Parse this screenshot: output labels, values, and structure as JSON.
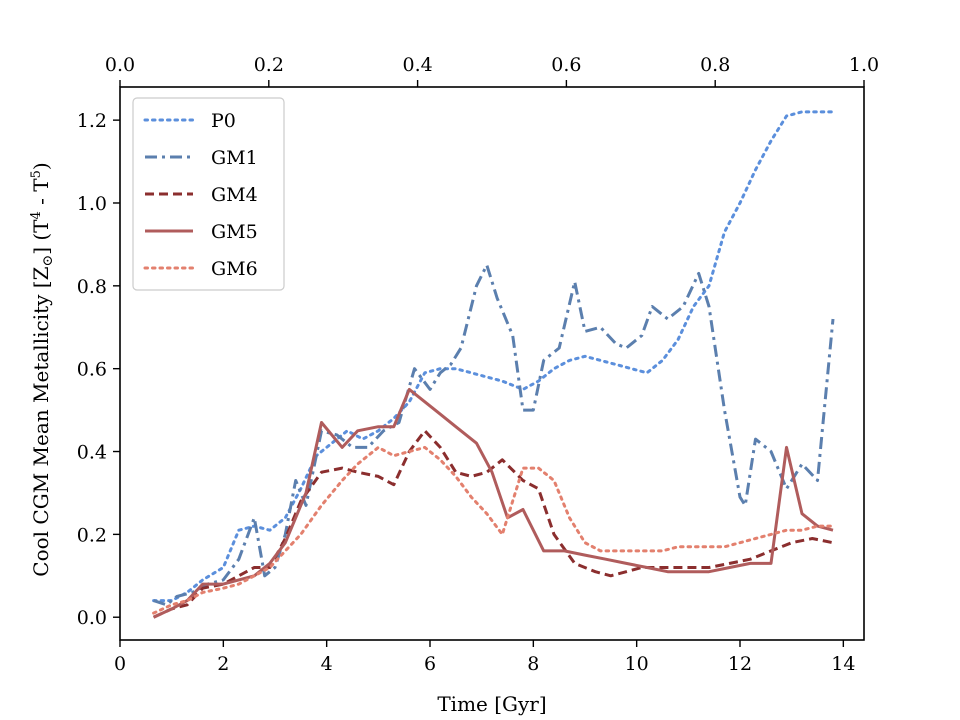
{
  "chart_data": {
    "type": "line",
    "xlabel": "Time [Gyr]",
    "ylabel": {
      "base": "Cool CGM Mean Metallicity [Z",
      "sun": "⊙",
      "mid": "] (T",
      "sup1": "4",
      "dash": " - T",
      "sup2": "5",
      "end": ")"
    },
    "xlim": [
      0,
      14.4
    ],
    "ylim": [
      -0.055,
      1.28
    ],
    "x_ticks": [
      0,
      2,
      4,
      6,
      8,
      10,
      12,
      14
    ],
    "x_tick_labels": [
      "0",
      "2",
      "4",
      "6",
      "8",
      "10",
      "12",
      "14"
    ],
    "y_ticks": [
      0.0,
      0.2,
      0.4,
      0.6,
      0.8,
      1.0,
      1.2
    ],
    "y_tick_labels": [
      "0.0",
      "0.2",
      "0.4",
      "0.6",
      "0.8",
      "1.0",
      "1.2"
    ],
    "top_ticks": [
      0.0,
      0.2,
      0.4,
      0.6,
      0.8,
      1.0
    ],
    "top_tick_labels": [
      "0.0",
      "0.2",
      "0.4",
      "0.6",
      "0.8",
      "1.0"
    ],
    "legend_position": "upper-left",
    "series": [
      {
        "name": "P0",
        "color": "#5b8fdc",
        "style": "dotted",
        "x": [
          0.65,
          1.0,
          1.3,
          1.6,
          2.0,
          2.3,
          2.6,
          2.9,
          3.2,
          3.5,
          3.8,
          4.1,
          4.4,
          4.7,
          5.0,
          5.3,
          5.6,
          5.9,
          6.2,
          6.5,
          6.8,
          7.1,
          7.4,
          7.8,
          8.1,
          8.4,
          8.7,
          9.0,
          9.3,
          9.6,
          9.9,
          10.2,
          10.5,
          10.8,
          11.1,
          11.4,
          11.7,
          12.0,
          12.3,
          12.6,
          12.9,
          13.2,
          13.5,
          13.8
        ],
        "y": [
          0.04,
          0.04,
          0.06,
          0.09,
          0.12,
          0.21,
          0.22,
          0.21,
          0.24,
          0.31,
          0.39,
          0.42,
          0.45,
          0.43,
          0.45,
          0.48,
          0.52,
          0.59,
          0.6,
          0.6,
          0.59,
          0.58,
          0.57,
          0.55,
          0.57,
          0.6,
          0.62,
          0.63,
          0.62,
          0.61,
          0.6,
          0.59,
          0.62,
          0.67,
          0.75,
          0.8,
          0.93,
          1.0,
          1.08,
          1.15,
          1.21,
          1.22,
          1.22,
          1.22
        ]
      },
      {
        "name": "GM1",
        "color": "#5b7fae",
        "style": "dashdot",
        "x": [
          0.65,
          0.9,
          1.1,
          1.4,
          1.7,
          2.0,
          2.3,
          2.6,
          2.8,
          3.0,
          3.2,
          3.4,
          3.6,
          3.9,
          4.2,
          4.5,
          4.8,
          5.1,
          5.4,
          5.7,
          6.0,
          6.2,
          6.4,
          6.6,
          6.9,
          7.1,
          7.3,
          7.6,
          7.8,
          8.0,
          8.2,
          8.5,
          8.8,
          9.0,
          9.3,
          9.6,
          9.8,
          10.1,
          10.3,
          10.6,
          10.9,
          11.2,
          11.4,
          11.7,
          12.0,
          12.1,
          12.3,
          12.6,
          12.9,
          13.2,
          13.5,
          13.8
        ],
        "y": [
          0.04,
          0.03,
          0.05,
          0.06,
          0.08,
          0.09,
          0.14,
          0.24,
          0.1,
          0.12,
          0.2,
          0.33,
          0.27,
          0.45,
          0.44,
          0.41,
          0.41,
          0.45,
          0.47,
          0.6,
          0.55,
          0.59,
          0.61,
          0.65,
          0.8,
          0.85,
          0.77,
          0.68,
          0.5,
          0.5,
          0.62,
          0.65,
          0.81,
          0.69,
          0.7,
          0.66,
          0.65,
          0.68,
          0.75,
          0.72,
          0.75,
          0.83,
          0.75,
          0.5,
          0.29,
          0.27,
          0.43,
          0.4,
          0.31,
          0.37,
          0.33,
          0.72
        ]
      },
      {
        "name": "GM4",
        "color": "#8b2e2e",
        "style": "dashed",
        "x": [
          0.65,
          1.0,
          1.3,
          1.6,
          2.0,
          2.3,
          2.6,
          2.9,
          3.2,
          3.5,
          3.9,
          4.3,
          4.6,
          5.0,
          5.3,
          5.6,
          5.9,
          6.2,
          6.5,
          6.8,
          7.1,
          7.4,
          7.8,
          8.1,
          8.4,
          8.8,
          9.2,
          9.5,
          9.8,
          10.1,
          10.4,
          10.7,
          11.0,
          11.4,
          11.8,
          12.2,
          12.6,
          13.0,
          13.4,
          13.8
        ],
        "y": [
          0.0,
          0.02,
          0.03,
          0.07,
          0.08,
          0.1,
          0.12,
          0.12,
          0.19,
          0.28,
          0.35,
          0.36,
          0.35,
          0.34,
          0.32,
          0.4,
          0.45,
          0.41,
          0.35,
          0.34,
          0.35,
          0.38,
          0.33,
          0.31,
          0.2,
          0.13,
          0.11,
          0.1,
          0.11,
          0.12,
          0.12,
          0.12,
          0.12,
          0.12,
          0.13,
          0.14,
          0.16,
          0.18,
          0.19,
          0.18
        ]
      },
      {
        "name": "GM5",
        "color": "#b05c5c",
        "style": "solid",
        "x": [
          0.65,
          1.0,
          1.3,
          1.6,
          2.0,
          2.3,
          2.6,
          2.9,
          3.2,
          3.6,
          3.9,
          4.3,
          4.6,
          5.0,
          5.3,
          5.6,
          5.9,
          6.2,
          6.5,
          6.9,
          7.2,
          7.5,
          7.8,
          8.2,
          8.6,
          9.0,
          9.4,
          9.8,
          10.2,
          10.6,
          11.0,
          11.4,
          11.8,
          12.2,
          12.6,
          12.9,
          13.2,
          13.5,
          13.8
        ],
        "y": [
          0.0,
          0.02,
          0.04,
          0.08,
          0.08,
          0.09,
          0.1,
          0.13,
          0.18,
          0.3,
          0.47,
          0.41,
          0.45,
          0.46,
          0.46,
          0.55,
          0.52,
          0.49,
          0.46,
          0.42,
          0.35,
          0.24,
          0.26,
          0.16,
          0.16,
          0.15,
          0.14,
          0.13,
          0.12,
          0.11,
          0.11,
          0.11,
          0.12,
          0.13,
          0.13,
          0.41,
          0.25,
          0.22,
          0.21
        ]
      },
      {
        "name": "GM6",
        "color": "#e3806e",
        "style": "dotted",
        "x": [
          0.65,
          1.0,
          1.3,
          1.6,
          2.0,
          2.3,
          2.6,
          2.9,
          3.2,
          3.5,
          3.9,
          4.3,
          4.6,
          5.0,
          5.3,
          5.6,
          5.9,
          6.2,
          6.5,
          6.8,
          7.1,
          7.4,
          7.8,
          8.1,
          8.4,
          8.7,
          9.0,
          9.3,
          9.6,
          9.9,
          10.2,
          10.5,
          10.8,
          11.1,
          11.4,
          11.7,
          12.0,
          12.3,
          12.6,
          12.9,
          13.2,
          13.5,
          13.8
        ],
        "y": [
          0.01,
          0.03,
          0.04,
          0.06,
          0.07,
          0.08,
          0.1,
          0.12,
          0.16,
          0.2,
          0.27,
          0.33,
          0.37,
          0.41,
          0.39,
          0.4,
          0.41,
          0.38,
          0.34,
          0.29,
          0.25,
          0.2,
          0.36,
          0.36,
          0.33,
          0.24,
          0.18,
          0.16,
          0.16,
          0.16,
          0.16,
          0.16,
          0.17,
          0.17,
          0.17,
          0.17,
          0.18,
          0.19,
          0.2,
          0.21,
          0.21,
          0.22,
          0.22
        ]
      }
    ]
  }
}
